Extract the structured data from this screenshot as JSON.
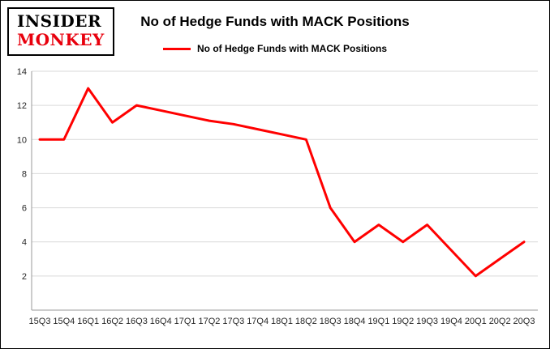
{
  "logo": {
    "line1": "INSIDER",
    "line2": "MONKEY"
  },
  "title": "No of Hedge Funds with MACK Positions",
  "legend": {
    "label": "No of Hedge Funds with MACK Positions"
  },
  "colors": {
    "line": "#ff0000",
    "grid": "#d9d9d9",
    "axis": "#999999",
    "tick_text": "#262626",
    "logo_red": "#e8000d",
    "title_text": "#000000",
    "background": "#ffffff"
  },
  "chart_data": {
    "type": "line",
    "title": "No of Hedge Funds with MACK Positions",
    "xlabel": "",
    "ylabel": "",
    "categories": [
      "15Q3",
      "15Q4",
      "16Q1",
      "16Q2",
      "16Q3",
      "16Q4",
      "17Q1",
      "17Q2",
      "17Q3",
      "17Q4",
      "18Q1",
      "18Q2",
      "18Q3",
      "18Q4",
      "19Q1",
      "19Q2",
      "19Q3",
      "19Q4",
      "20Q1",
      "20Q2",
      "20Q3"
    ],
    "series": [
      {
        "name": "No of Hedge Funds with MACK Positions",
        "values": [
          10,
          10,
          13,
          11,
          12,
          11.7,
          11.4,
          11.1,
          10.9,
          10.6,
          10.3,
          10,
          6,
          4,
          5,
          4,
          5,
          3.5,
          2,
          3,
          4
        ]
      }
    ],
    "ylim": [
      0,
      14
    ],
    "yticks": [
      2,
      4,
      6,
      8,
      10,
      12,
      14
    ],
    "grid": true,
    "legend_position": "top-center",
    "line_color": "#ff0000"
  }
}
